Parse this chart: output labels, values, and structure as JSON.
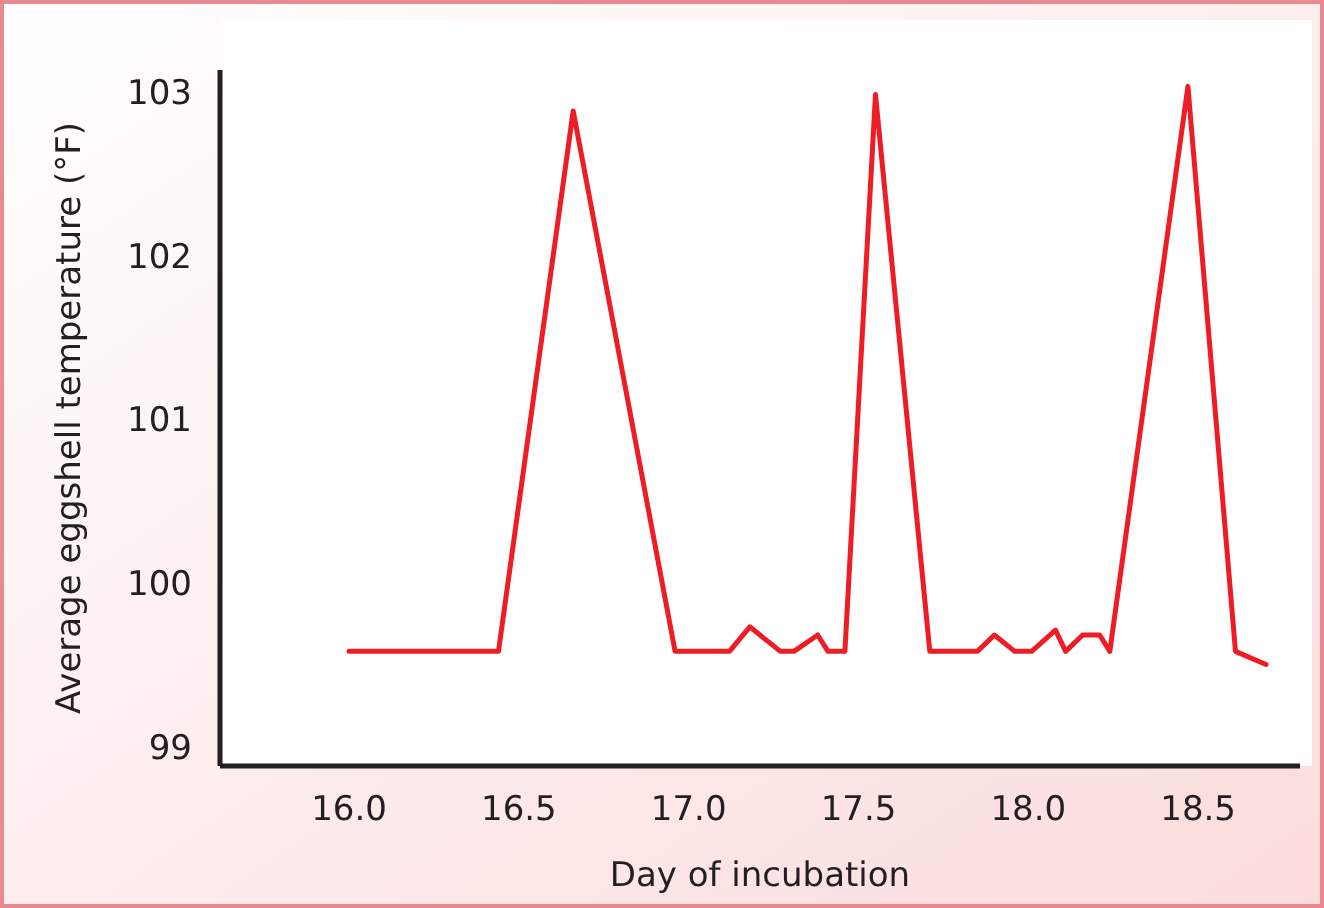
{
  "chart_data": {
    "type": "line",
    "xlabel": "Day of incubation",
    "ylabel": "Average eggshell temperature (°F)",
    "x": [
      16.0,
      16.44,
      16.66,
      16.96,
      17.12,
      17.18,
      17.27,
      17.31,
      17.38,
      17.41,
      17.46,
      17.55,
      17.71,
      17.85,
      17.9,
      17.96,
      18.01,
      18.08,
      18.11,
      18.16,
      18.21,
      18.24,
      18.47,
      18.61,
      18.7
    ],
    "series": [
      {
        "color": "#ee1c25",
        "values": [
          99.6,
          99.6,
          102.9,
          99.6,
          99.6,
          99.75,
          99.6,
          99.6,
          99.7,
          99.6,
          99.6,
          103.0,
          99.6,
          99.6,
          99.7,
          99.6,
          99.6,
          99.73,
          99.6,
          99.7,
          99.7,
          99.6,
          103.05,
          99.6,
          99.52
        ]
      }
    ],
    "xlim": [
      15.62,
      18.8
    ],
    "ylim": [
      98.9,
      103.15
    ],
    "xticks": [
      {
        "value": 16,
        "label": "16.0"
      },
      16.5,
      {
        "value": 17,
        "label": "17.0"
      },
      17.5,
      {
        "value": 18,
        "label": "18.0"
      },
      18.5
    ],
    "yticks": [
      99,
      100,
      101,
      102,
      103
    ],
    "grid": false,
    "marker": "none",
    "line_style": "solid"
  }
}
